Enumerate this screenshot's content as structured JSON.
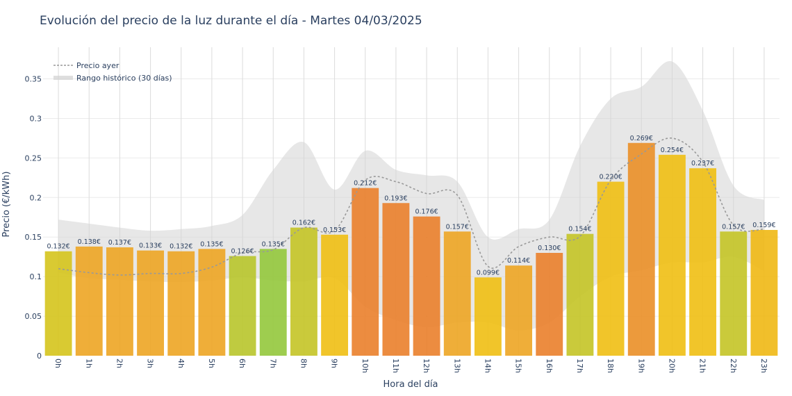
{
  "chart_data": {
    "type": "bar",
    "title": "Evolución del precio de la luz durante el día - Martes 04/03/2025",
    "xlabel": "Hora del día",
    "ylabel": "Precio (€/kWh)",
    "ylim": [
      0,
      0.39
    ],
    "yticks": [
      0,
      0.05,
      0.1,
      0.15,
      0.2,
      0.25,
      0.3,
      0.35
    ],
    "ytick_labels": [
      "0",
      "0.05",
      "0.1",
      "0.15",
      "0.2",
      "0.25",
      "0.3",
      "0.35"
    ],
    "categories": [
      "0h",
      "1h",
      "2h",
      "3h",
      "4h",
      "5h",
      "6h",
      "7h",
      "8h",
      "9h",
      "10h",
      "11h",
      "12h",
      "13h",
      "14h",
      "15h",
      "16h",
      "17h",
      "18h",
      "19h",
      "20h",
      "21h",
      "22h",
      "23h"
    ],
    "grid": true,
    "legend_position": "top-left",
    "series": [
      {
        "name": "",
        "kind": "bar",
        "values": [
          0.132,
          0.138,
          0.137,
          0.133,
          0.132,
          0.135,
          0.126,
          0.135,
          0.162,
          0.153,
          0.212,
          0.193,
          0.176,
          0.157,
          0.099,
          0.114,
          0.13,
          0.154,
          0.22,
          0.269,
          0.254,
          0.237,
          0.157,
          0.159
        ],
        "labels": [
          "0.132€",
          "0.138€",
          "0.137€",
          "0.133€",
          "0.132€",
          "0.135€",
          "0.126€",
          "0.135€",
          "0.162€",
          "0.153€",
          "0.212€",
          "0.193€",
          "0.176€",
          "0.157€",
          "0.099€",
          "0.114€",
          "0.130€",
          "0.154€",
          "0.220€",
          "0.269€",
          "0.254€",
          "0.237€",
          "0.157€",
          "0.159€"
        ],
        "colors": [
          "#d5c41c",
          "#eda523",
          "#eda523",
          "#eda523",
          "#eda523",
          "#eda523",
          "#b8c52b",
          "#93c83c",
          "#c4c426",
          "#efbf13",
          "#ea7f2b",
          "#ea7f2b",
          "#ea7f2b",
          "#eda523",
          "#efbf13",
          "#eda523",
          "#ea7f2b",
          "#c4c426",
          "#efbf13",
          "#ea8f27",
          "#efbf13",
          "#efbf13",
          "#c4c426",
          "#efb814"
        ]
      },
      {
        "name": "Precio ayer",
        "kind": "line",
        "dash": true,
        "color": "#999999",
        "values": [
          0.11,
          0.105,
          0.102,
          0.104,
          0.104,
          0.112,
          0.13,
          0.134,
          0.162,
          0.158,
          0.222,
          0.22,
          0.205,
          0.203,
          0.113,
          0.138,
          0.15,
          0.151,
          0.222,
          0.255,
          0.275,
          0.245,
          0.165,
          0.16
        ]
      },
      {
        "name": "Rango histórico (30 días)",
        "kind": "band",
        "color": "#d3d3d3",
        "opacity": 0.55,
        "upper": [
          0.172,
          0.167,
          0.162,
          0.158,
          0.16,
          0.164,
          0.178,
          0.235,
          0.27,
          0.21,
          0.259,
          0.235,
          0.228,
          0.22,
          0.15,
          0.16,
          0.172,
          0.265,
          0.325,
          0.34,
          0.372,
          0.31,
          0.215,
          0.197
        ],
        "lower": [
          0.105,
          0.098,
          0.096,
          0.094,
          0.093,
          0.095,
          0.099,
          0.095,
          0.094,
          0.098,
          0.062,
          0.045,
          0.036,
          0.042,
          0.042,
          0.032,
          0.042,
          0.075,
          0.1,
          0.108,
          0.118,
          0.118,
          0.125,
          0.107
        ]
      }
    ]
  }
}
